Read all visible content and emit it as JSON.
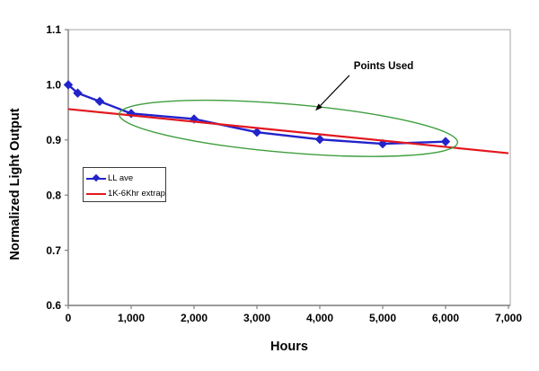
{
  "chart_data": {
    "type": "line",
    "title": "",
    "xlabel": "Hours",
    "ylabel": "Normalized Light Output",
    "xlim": [
      0,
      7000
    ],
    "ylim": [
      0.6,
      1.1
    ],
    "grid": false,
    "legend_position": "inside-left",
    "x_ticks": [
      {
        "value": 0,
        "label": "0"
      },
      {
        "value": 1000,
        "label": "1,000"
      },
      {
        "value": 2000,
        "label": "2,000"
      },
      {
        "value": 3000,
        "label": "3,000"
      },
      {
        "value": 4000,
        "label": "4,000"
      },
      {
        "value": 5000,
        "label": "5,000"
      },
      {
        "value": 6000,
        "label": "6,000"
      },
      {
        "value": 7000,
        "label": "7,000"
      }
    ],
    "y_ticks": [
      {
        "value": 0.6,
        "label": "0.6"
      },
      {
        "value": 0.7,
        "label": "0.7"
      },
      {
        "value": 0.8,
        "label": "0.8"
      },
      {
        "value": 0.9,
        "label": "0.9"
      },
      {
        "value": 1.0,
        "label": "1.0"
      },
      {
        "value": 1.1,
        "label": "1.1"
      }
    ],
    "series": [
      {
        "name": "LL ave",
        "color": "#2323cb",
        "marker": "diamond",
        "line_width": 2.4,
        "x": [
          0,
          150,
          500,
          1000,
          2000,
          3000,
          4000,
          5000,
          6000
        ],
        "y": [
          1.0,
          0.985,
          0.97,
          0.948,
          0.938,
          0.914,
          0.901,
          0.893,
          0.897
        ]
      },
      {
        "name": "1K-6Khr extrap",
        "color": "#e2181f",
        "marker": "none",
        "line_width": 2.2,
        "x": [
          0,
          7000
        ],
        "y": [
          0.956,
          0.876
        ]
      }
    ],
    "annotation": {
      "label": "Points Used",
      "label_anchor": {
        "x": 4540,
        "y": 1.043
      },
      "arrow": {
        "from": {
          "x": 4470,
          "y": 1.017
        },
        "to": {
          "x": 3930,
          "y": 0.953
        }
      },
      "ellipse": {
        "center": {
          "x": 3500,
          "y": 0.921
        },
        "rx": 2700,
        "ry": 0.044,
        "rotation_deg": 4.8,
        "color": "#3f9e3f"
      }
    },
    "axis_colors": {
      "axis_line": "#808080",
      "plot_border": "#b4b4b4",
      "tick": "#808080"
    }
  }
}
